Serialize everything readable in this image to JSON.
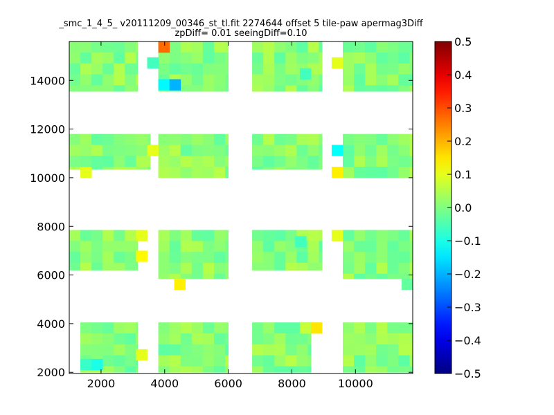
{
  "chart_data": {
    "type": "heatmap",
    "title_line1": "_smc_1_4_5_ v20111209_00346_st_tl.fit 2274644 offset 5 tile-paw apermag3Diff",
    "title_line2": "zpDiff= 0.01 seeingDiff=0.10",
    "xlabel": "",
    "ylabel": "",
    "xlim": [
      1000,
      11800
    ],
    "ylim": [
      1950,
      15600
    ],
    "x_ticks": [
      2000,
      4000,
      6000,
      8000,
      10000
    ],
    "y_ticks": [
      2000,
      4000,
      6000,
      8000,
      10000,
      12000,
      14000
    ],
    "colorbar": {
      "colormap": "jet",
      "vmin": -0.5,
      "vmax": 0.5,
      "ticks": [
        "0.5",
        "0.4",
        "0.3",
        "0.2",
        "0.1",
        "0.0",
        "−0.1",
        "−0.2",
        "−0.3",
        "−0.4",
        "−0.5"
      ]
    },
    "cell_size": [
      350,
      450
    ],
    "base_value": 0.01,
    "blocks": [
      {
        "x": [
          1000,
          3150
        ],
        "y": [
          13550,
          15600
        ]
      },
      {
        "x": [
          3800,
          6000
        ],
        "y": [
          13550,
          15600
        ]
      },
      {
        "x": [
          6750,
          8950
        ],
        "y": [
          13550,
          15600
        ]
      },
      {
        "x": [
          9600,
          11800
        ],
        "y": [
          13550,
          15600
        ]
      },
      {
        "x": [
          1000,
          3550
        ],
        "y": [
          10350,
          11800
        ]
      },
      {
        "x": [
          3800,
          6000
        ],
        "y": [
          10000,
          11800
        ]
      },
      {
        "x": [
          6750,
          8950
        ],
        "y": [
          10350,
          11800
        ]
      },
      {
        "x": [
          9600,
          11800
        ],
        "y": [
          10000,
          11800
        ]
      },
      {
        "x": [
          1000,
          3150
        ],
        "y": [
          6200,
          7850
        ]
      },
      {
        "x": [
          3800,
          6000
        ],
        "y": [
          5850,
          7850
        ]
      },
      {
        "x": [
          6750,
          8950
        ],
        "y": [
          6200,
          7850
        ]
      },
      {
        "x": [
          9600,
          11800
        ],
        "y": [
          5850,
          7850
        ]
      },
      {
        "x": [
          1350,
          3150
        ],
        "y": [
          2000,
          4050
        ]
      },
      {
        "x": [
          3800,
          6000
        ],
        "y": [
          2000,
          4050
        ]
      },
      {
        "x": [
          6750,
          8600
        ],
        "y": [
          2000,
          4050
        ]
      },
      {
        "x": [
          9600,
          11800
        ],
        "y": [
          2000,
          4050
        ]
      }
    ],
    "special_cells": [
      {
        "x": 3800,
        "y": 15600,
        "value": 0.27
      },
      {
        "x": 3800,
        "y": 14050,
        "value": -0.13
      },
      {
        "x": 4150,
        "y": 14050,
        "value": -0.2
      },
      {
        "x": 3450,
        "y": 14950,
        "value": -0.06
      },
      {
        "x": 9250,
        "y": 14950,
        "value": 0.1
      },
      {
        "x": 8250,
        "y": 14500,
        "value": -0.06
      },
      {
        "x": 3450,
        "y": 11350,
        "value": 0.1
      },
      {
        "x": 9250,
        "y": 11350,
        "value": -0.12
      },
      {
        "x": 1350,
        "y": 10450,
        "value": 0.1
      },
      {
        "x": 9250,
        "y": 10450,
        "value": 0.14
      },
      {
        "x": 3100,
        "y": 7850,
        "value": 0.1
      },
      {
        "x": 9250,
        "y": 7850,
        "value": 0.1
      },
      {
        "x": 3100,
        "y": 7000,
        "value": 0.13
      },
      {
        "x": 8100,
        "y": 7600,
        "value": -0.06
      },
      {
        "x": 4300,
        "y": 5850,
        "value": 0.14
      },
      {
        "x": 8250,
        "y": 4050,
        "value": 0.07
      },
      {
        "x": 8600,
        "y": 4050,
        "value": 0.15
      },
      {
        "x": 3100,
        "y": 2950,
        "value": 0.1
      },
      {
        "x": 1350,
        "y": 2550,
        "value": -0.07
      },
      {
        "x": 1700,
        "y": 2550,
        "value": -0.1
      },
      {
        "x": 11450,
        "y": 5850,
        "value": -0.03
      }
    ]
  }
}
